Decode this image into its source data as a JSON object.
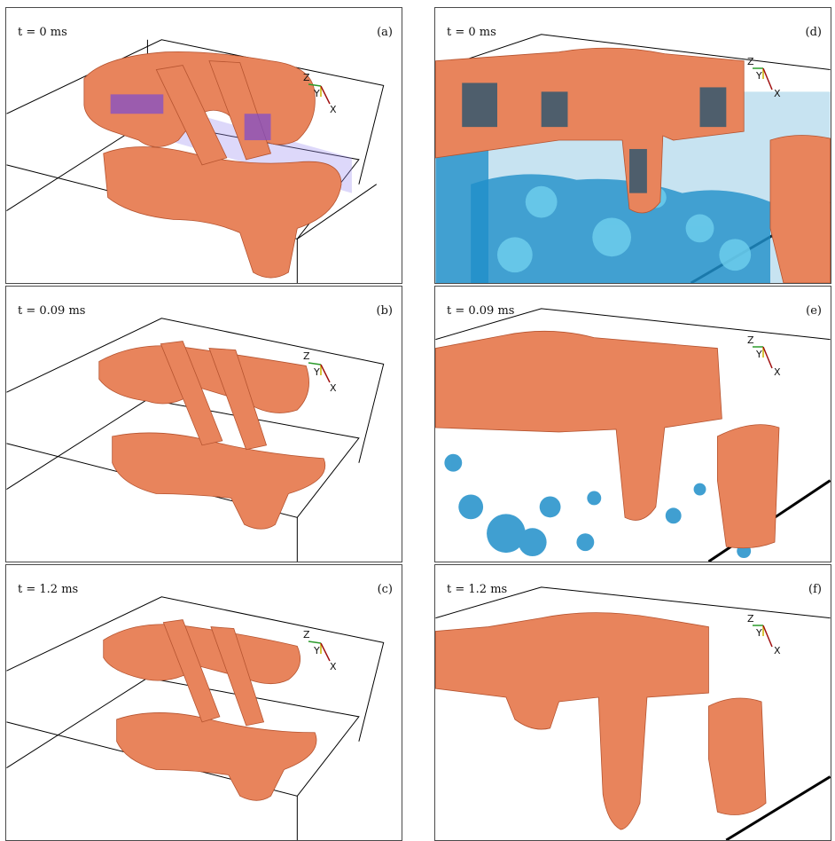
{
  "panels": [
    {
      "id": "a",
      "label": "(a)",
      "time": "t = 0 ms"
    },
    {
      "id": "b",
      "label": "(b)",
      "time": "t = 0.09 ms"
    },
    {
      "id": "c",
      "label": "(c)",
      "time": "t = 1.2 ms"
    },
    {
      "id": "d",
      "label": "(d)",
      "time": "t = 0 ms"
    },
    {
      "id": "e",
      "label": "(e)",
      "time": "t = 0.09 ms"
    },
    {
      "id": "f",
      "label": "(f)",
      "time": "t = 1.2 ms"
    }
  ],
  "axis_labels": {
    "z": "Z",
    "y": "Y",
    "x": "X"
  },
  "colors": {
    "solid_phase": "#e8845c",
    "solid_phase_dark": "#b5532f",
    "liquid_phase": "#1f8fc9",
    "liquid_phase_light": "#6fd0ee",
    "plane_overlay": "#9d8ff0",
    "axis_z": "#2a9a2a",
    "axis_y": "#c8b400",
    "axis_x": "#a01010",
    "box_edges": "#000000"
  }
}
